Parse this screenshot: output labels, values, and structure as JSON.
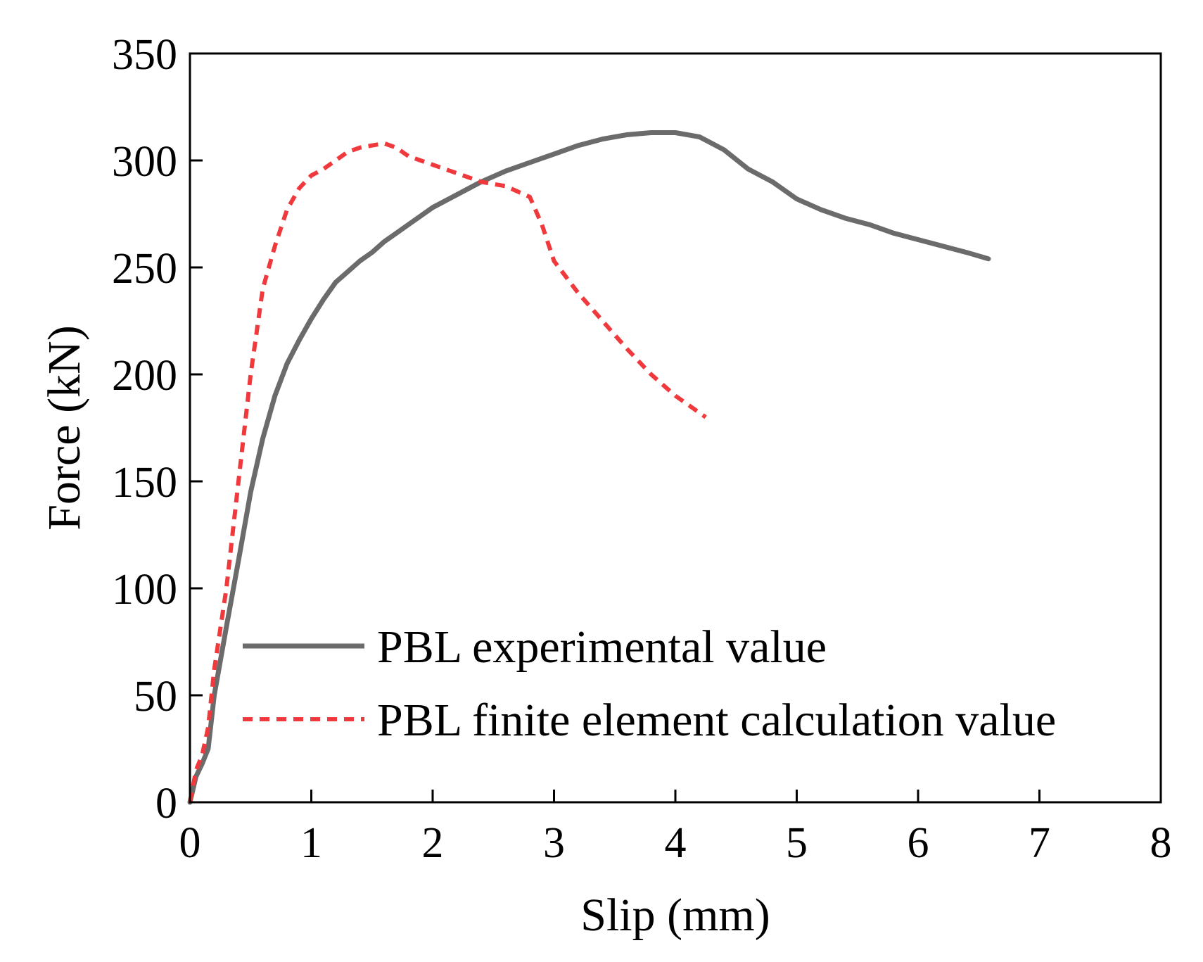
{
  "chart_data": {
    "type": "line",
    "title": "",
    "xlabel": "Slip (mm)",
    "ylabel": "Force (kN)",
    "xlim": [
      0,
      8
    ],
    "ylim": [
      0,
      350
    ],
    "xticks": [
      0,
      1,
      2,
      3,
      4,
      5,
      6,
      7,
      8
    ],
    "xtick_labels": [
      "0",
      "1",
      "2",
      "3",
      "4",
      "5",
      "6",
      "7",
      "8"
    ],
    "yticks": [
      0,
      50,
      100,
      150,
      200,
      250,
      300,
      350
    ],
    "ytick_labels": [
      "0",
      "50",
      "100",
      "150",
      "200",
      "250",
      "300",
      "350"
    ],
    "grid": false,
    "legend_position": "bottom-right",
    "series": [
      {
        "name": "PBL experimental value",
        "color": "#6b6b6b",
        "style": "solid",
        "x": [
          0,
          0.05,
          0.1,
          0.15,
          0.2,
          0.3,
          0.4,
          0.5,
          0.6,
          0.7,
          0.8,
          0.9,
          1.0,
          1.1,
          1.2,
          1.3,
          1.4,
          1.5,
          1.6,
          1.7,
          1.8,
          2.0,
          2.2,
          2.4,
          2.6,
          2.8,
          3.0,
          3.2,
          3.4,
          3.6,
          3.8,
          4.0,
          4.2,
          4.4,
          4.6,
          4.8,
          5.0,
          5.2,
          5.4,
          5.6,
          5.8,
          6.0,
          6.2,
          6.4,
          6.58
        ],
        "y": [
          0,
          12,
          18,
          25,
          50,
          82,
          113,
          145,
          170,
          190,
          205,
          216,
          226,
          235,
          243,
          248,
          253,
          257,
          262,
          266,
          270,
          278,
          284,
          290,
          295,
          299,
          303,
          307,
          310,
          312,
          313,
          313,
          311,
          305,
          296,
          290,
          282,
          277,
          273,
          270,
          266,
          263,
          260,
          257,
          254
        ]
      },
      {
        "name": "PBL finite element calculation value",
        "color": "#f0393c",
        "style": "dashed",
        "x": [
          0,
          0.05,
          0.1,
          0.15,
          0.2,
          0.3,
          0.4,
          0.5,
          0.6,
          0.7,
          0.8,
          0.9,
          1.0,
          1.1,
          1.2,
          1.3,
          1.4,
          1.5,
          1.6,
          1.7,
          1.8,
          2.0,
          2.2,
          2.4,
          2.6,
          2.8,
          2.9,
          3.0,
          3.2,
          3.4,
          3.6,
          3.8,
          4.0,
          4.2,
          4.25
        ],
        "y": [
          0,
          15,
          22,
          35,
          62,
          100,
          150,
          200,
          240,
          260,
          277,
          287,
          293,
          296,
          300,
          304,
          306,
          307,
          308,
          306,
          302,
          298,
          294,
          290,
          288,
          283,
          270,
          253,
          238,
          225,
          212,
          200,
          190,
          182,
          180
        ]
      }
    ]
  }
}
